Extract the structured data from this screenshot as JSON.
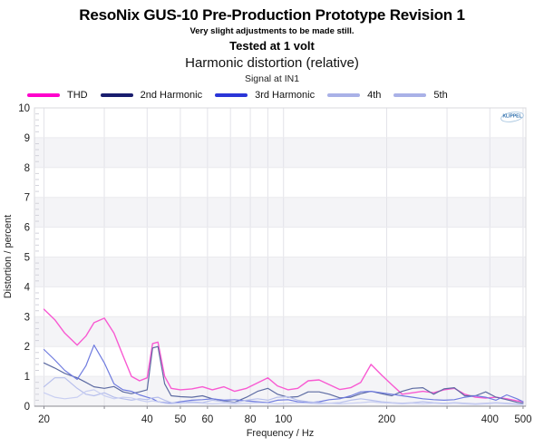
{
  "header": {
    "title": "ResoNix GUS-10 Pre-Production Prototype Revision 1",
    "subtitle": "Very slight adjustments to be made still.",
    "tested_note": "Tested at 1 volt",
    "chart_title": "Harmonic distortion (relative)",
    "chart_subtitle": "Signal at IN1"
  },
  "watermark": {
    "text": "KLIPPEL",
    "color": "#2b6cab"
  },
  "colors": {
    "band_gray": "#f4f4f7",
    "grid_h": "#eaeaee",
    "grid_v": "#e3e3e9",
    "border": "#d8d8de",
    "axis": "#8a8a92",
    "tick_text": "#222222"
  },
  "chart_data": {
    "type": "line",
    "title": "Harmonic distortion (relative)",
    "subtitle": "Signal at IN1",
    "xlabel": "Frequency / Hz",
    "ylabel": "Distortion / percent",
    "xscale": "log",
    "xlim": [
      18.8,
      509
    ],
    "ylim": [
      0,
      10
    ],
    "grid": true,
    "legend_position": "top",
    "x_ticks": [
      20,
      40,
      50,
      60,
      80,
      100,
      200,
      400,
      500
    ],
    "x_gridlines": [
      20,
      30,
      40,
      50,
      60,
      70,
      80,
      90,
      100,
      200,
      300,
      400,
      500
    ],
    "y_ticks": [
      0,
      1,
      2,
      3,
      4,
      5,
      6,
      7,
      8,
      9,
      10
    ],
    "x": [
      20,
      21.5,
      23,
      25,
      26.5,
      28,
      30,
      32,
      34,
      36,
      38,
      40,
      41.5,
      43,
      45,
      47,
      50,
      54,
      58,
      62,
      67,
      72,
      78,
      84,
      90,
      96,
      103,
      110,
      118,
      127,
      136,
      146,
      157,
      168,
      180,
      193,
      207,
      222,
      238,
      255,
      274,
      294,
      315,
      338,
      363,
      389,
      417,
      448,
      480,
      500
    ],
    "series": [
      {
        "name": "THD",
        "legend_color": "#ff00cc",
        "color": "#f85ad2",
        "width": 1.4,
        "values": [
          3.25,
          2.9,
          2.45,
          2.05,
          2.35,
          2.8,
          2.95,
          2.45,
          1.7,
          1.0,
          0.85,
          0.95,
          2.1,
          2.15,
          1.0,
          0.6,
          0.55,
          0.58,
          0.65,
          0.55,
          0.65,
          0.5,
          0.6,
          0.78,
          0.95,
          0.68,
          0.55,
          0.6,
          0.85,
          0.88,
          0.72,
          0.56,
          0.62,
          0.8,
          1.4,
          1.05,
          0.72,
          0.4,
          0.45,
          0.5,
          0.45,
          0.55,
          0.6,
          0.4,
          0.3,
          0.27,
          0.3,
          0.25,
          0.18,
          0.15
        ]
      },
      {
        "name": "2nd Harmonic",
        "legend_color": "#191d6e",
        "color": "#5d6ba2",
        "width": 1.2,
        "values": [
          1.45,
          1.28,
          1.1,
          0.95,
          0.8,
          0.65,
          0.6,
          0.66,
          0.48,
          0.42,
          0.48,
          0.55,
          1.95,
          2.0,
          0.75,
          0.35,
          0.32,
          0.3,
          0.35,
          0.25,
          0.18,
          0.13,
          0.3,
          0.5,
          0.6,
          0.4,
          0.3,
          0.32,
          0.48,
          0.48,
          0.4,
          0.28,
          0.3,
          0.42,
          0.5,
          0.42,
          0.35,
          0.5,
          0.6,
          0.62,
          0.4,
          0.58,
          0.62,
          0.35,
          0.35,
          0.48,
          0.3,
          0.22,
          0.13,
          0.1
        ]
      },
      {
        "name": "3rd Harmonic",
        "legend_color": "#2a35d8",
        "color": "#6f7bdf",
        "width": 1.2,
        "values": [
          1.9,
          1.55,
          1.2,
          0.9,
          1.35,
          2.05,
          1.45,
          0.75,
          0.55,
          0.5,
          0.38,
          0.3,
          0.25,
          0.15,
          0.12,
          0.1,
          0.15,
          0.2,
          0.22,
          0.25,
          0.2,
          0.22,
          0.18,
          0.15,
          0.12,
          0.2,
          0.22,
          0.15,
          0.12,
          0.15,
          0.22,
          0.25,
          0.35,
          0.48,
          0.5,
          0.45,
          0.4,
          0.35,
          0.3,
          0.25,
          0.22,
          0.2,
          0.22,
          0.3,
          0.35,
          0.3,
          0.2,
          0.38,
          0.25,
          0.15
        ]
      },
      {
        "name": "4th",
        "legend_color": "#a9b1e7",
        "color": "#b7bfec",
        "width": 1.2,
        "values": [
          0.65,
          0.95,
          0.95,
          0.6,
          0.4,
          0.35,
          0.45,
          0.3,
          0.25,
          0.2,
          0.25,
          0.22,
          0.28,
          0.3,
          0.2,
          0.12,
          0.1,
          0.15,
          0.12,
          0.2,
          0.15,
          0.12,
          0.2,
          0.25,
          0.2,
          0.3,
          0.32,
          0.2,
          0.15,
          0.12,
          0.1,
          0.12,
          0.2,
          0.25,
          0.2,
          0.15,
          0.12,
          0.1,
          0.12,
          0.15,
          0.12,
          0.1,
          0.12,
          0.1,
          0.08,
          0.1,
          0.12,
          0.1,
          0.08,
          0.07
        ]
      },
      {
        "name": "5th",
        "legend_color": "#a9b1e7",
        "color": "#c9cff2",
        "width": 1.2,
        "values": [
          0.45,
          0.3,
          0.25,
          0.3,
          0.5,
          0.55,
          0.35,
          0.25,
          0.3,
          0.28,
          0.2,
          0.15,
          0.18,
          0.15,
          0.1,
          0.08,
          0.1,
          0.12,
          0.1,
          0.08,
          0.1,
          0.08,
          0.1,
          0.12,
          0.1,
          0.08,
          0.1,
          0.12,
          0.1,
          0.08,
          0.1,
          0.08,
          0.1,
          0.12,
          0.15,
          0.12,
          0.1,
          0.08,
          0.1,
          0.08,
          0.1,
          0.08,
          0.1,
          0.08,
          0.06,
          0.08,
          0.1,
          0.08,
          0.06,
          0.05
        ]
      }
    ]
  }
}
